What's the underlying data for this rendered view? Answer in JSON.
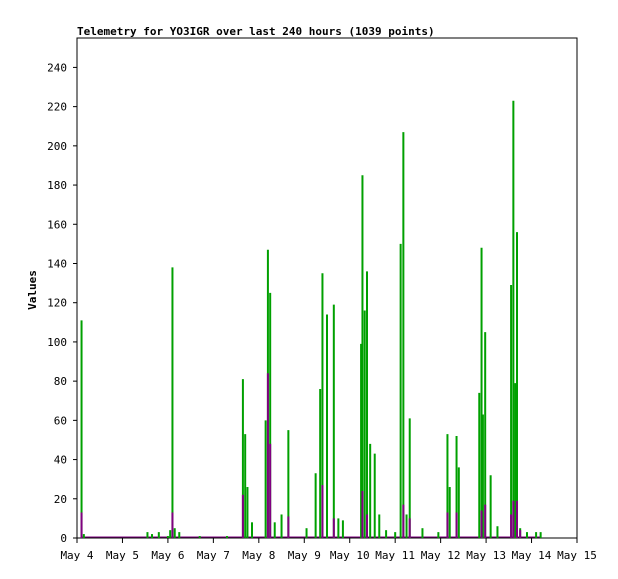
{
  "chart_data": {
    "type": "bar",
    "title": "Telemetry for YO3IGR over last 240 hours (1039 points)",
    "xlabel": "",
    "ylabel": "Values",
    "xlim": [
      0,
      11
    ],
    "ylim": [
      0,
      255
    ],
    "grid": false,
    "x_tick_labels": [
      "May 4",
      "May 5",
      "May 6",
      "May 7",
      "May 8",
      "May 9",
      "May 10",
      "May 11",
      "May 12",
      "May 13",
      "May 14",
      "May 15"
    ],
    "y_ticks": [
      0,
      20,
      40,
      60,
      80,
      100,
      120,
      140,
      160,
      180,
      200,
      220,
      240
    ],
    "series": [
      {
        "color": "#00a000",
        "points": [
          [
            0.1,
            111
          ],
          [
            0.15,
            2
          ],
          [
            1.55,
            3
          ],
          [
            1.65,
            2
          ],
          [
            1.8,
            3
          ],
          [
            2.0,
            1
          ],
          [
            2.05,
            4
          ],
          [
            2.1,
            138
          ],
          [
            2.15,
            5
          ],
          [
            2.25,
            3
          ],
          [
            2.7,
            1
          ],
          [
            3.3,
            1
          ],
          [
            3.65,
            81
          ],
          [
            3.7,
            53
          ],
          [
            3.75,
            26
          ],
          [
            3.85,
            8
          ],
          [
            4.15,
            60
          ],
          [
            4.2,
            147
          ],
          [
            4.25,
            125
          ],
          [
            4.35,
            8
          ],
          [
            4.5,
            12
          ],
          [
            4.65,
            55
          ],
          [
            5.05,
            5
          ],
          [
            5.25,
            33
          ],
          [
            5.35,
            76
          ],
          [
            5.4,
            135
          ],
          [
            5.5,
            114
          ],
          [
            5.65,
            119
          ],
          [
            5.75,
            10
          ],
          [
            5.85,
            9
          ],
          [
            6.25,
            99
          ],
          [
            6.28,
            185
          ],
          [
            6.33,
            116
          ],
          [
            6.38,
            136
          ],
          [
            6.45,
            48
          ],
          [
            6.55,
            43
          ],
          [
            6.65,
            12
          ],
          [
            6.8,
            4
          ],
          [
            7.0,
            3
          ],
          [
            7.12,
            150
          ],
          [
            7.18,
            207
          ],
          [
            7.25,
            12
          ],
          [
            7.32,
            61
          ],
          [
            7.6,
            5
          ],
          [
            7.95,
            3
          ],
          [
            8.15,
            53
          ],
          [
            8.2,
            26
          ],
          [
            8.35,
            52
          ],
          [
            8.4,
            36
          ],
          [
            8.85,
            74
          ],
          [
            8.9,
            148
          ],
          [
            8.93,
            63
          ],
          [
            8.98,
            105
          ],
          [
            9.1,
            32
          ],
          [
            9.25,
            6
          ],
          [
            9.55,
            129
          ],
          [
            9.6,
            223
          ],
          [
            9.64,
            79
          ],
          [
            9.68,
            156
          ],
          [
            9.75,
            5
          ],
          [
            9.9,
            3
          ],
          [
            10.1,
            3
          ],
          [
            10.2,
            3
          ]
        ]
      },
      {
        "color": "#800080",
        "points": [
          [
            0.1,
            13
          ],
          [
            2.1,
            13
          ],
          [
            3.65,
            22
          ],
          [
            4.2,
            84
          ],
          [
            4.25,
            48
          ],
          [
            4.65,
            11
          ],
          [
            5.4,
            27
          ],
          [
            5.65,
            10
          ],
          [
            6.28,
            24
          ],
          [
            6.38,
            12
          ],
          [
            7.18,
            17
          ],
          [
            7.32,
            10
          ],
          [
            8.15,
            13
          ],
          [
            8.35,
            13
          ],
          [
            8.9,
            14
          ],
          [
            8.98,
            17
          ],
          [
            9.55,
            12
          ],
          [
            9.6,
            19
          ],
          [
            9.68,
            19
          ],
          [
            9.75,
            4
          ]
        ]
      }
    ]
  }
}
